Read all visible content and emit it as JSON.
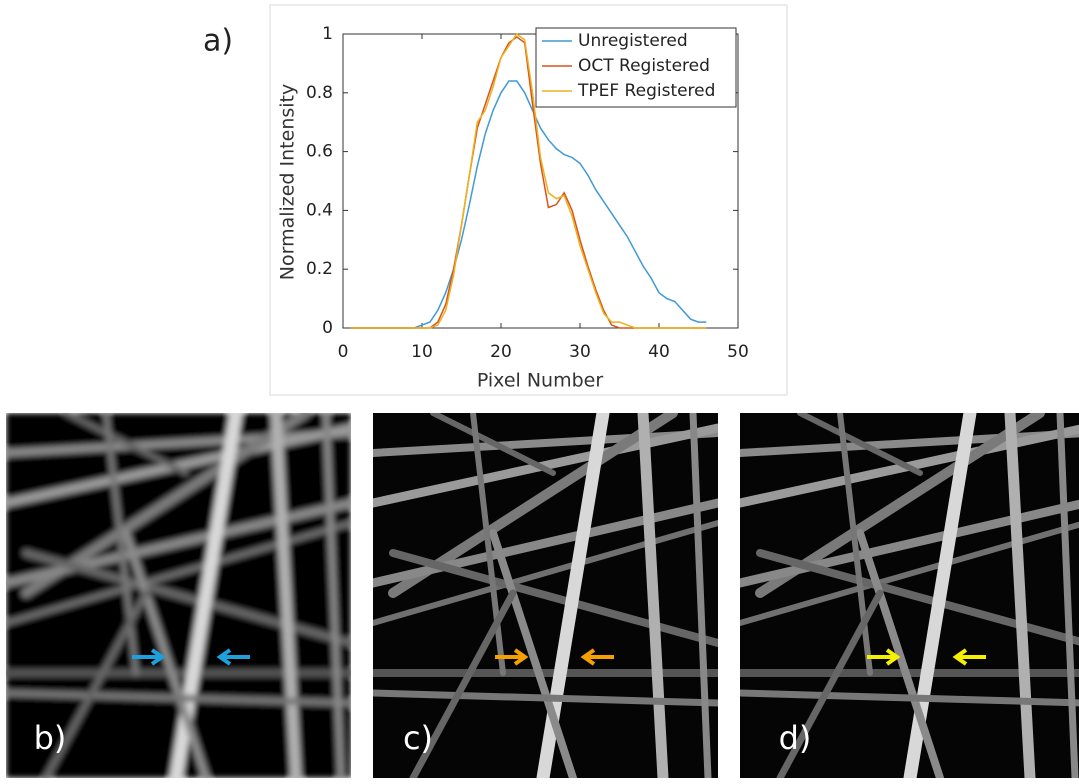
{
  "chart_data": {
    "type": "line",
    "panel_label": "a)",
    "xlabel": "Pixel Number",
    "ylabel": "Normalized Intensity",
    "x": [
      1,
      2,
      3,
      4,
      5,
      6,
      7,
      8,
      9,
      10,
      11,
      12,
      13,
      14,
      15,
      16,
      17,
      18,
      19,
      20,
      21,
      22,
      23,
      24,
      25,
      26,
      27,
      28,
      29,
      30,
      31,
      32,
      33,
      34,
      35,
      36,
      37,
      38,
      39,
      40,
      41,
      42,
      43,
      44,
      45,
      46
    ],
    "series": [
      {
        "name": "Unregistered",
        "color": "#3f9ad6",
        "values": [
          0,
          0,
          0,
          0,
          0,
          0,
          0,
          0,
          0,
          0.01,
          0.02,
          0.06,
          0.12,
          0.2,
          0.3,
          0.42,
          0.55,
          0.66,
          0.74,
          0.8,
          0.84,
          0.84,
          0.8,
          0.74,
          0.68,
          0.64,
          0.61,
          0.59,
          0.58,
          0.56,
          0.52,
          0.47,
          0.43,
          0.39,
          0.35,
          0.31,
          0.26,
          0.21,
          0.17,
          0.12,
          0.1,
          0.09,
          0.06,
          0.03,
          0.02,
          0.02
        ]
      },
      {
        "name": "OCT Registered",
        "color": "#d95319",
        "values": [
          0,
          0,
          0,
          0,
          0,
          0,
          0,
          0,
          0,
          0,
          0,
          0.02,
          0.08,
          0.2,
          0.35,
          0.52,
          0.68,
          0.76,
          0.84,
          0.92,
          0.97,
          0.99,
          0.97,
          0.76,
          0.56,
          0.41,
          0.42,
          0.46,
          0.4,
          0.3,
          0.21,
          0.13,
          0.06,
          0.01,
          0,
          0,
          0,
          0,
          0,
          0,
          0,
          0,
          0,
          0,
          0,
          0
        ]
      },
      {
        "name": "TPEF Registered",
        "color": "#edb120",
        "values": [
          0,
          0,
          0,
          0,
          0,
          0,
          0,
          0,
          0,
          0,
          0,
          0.01,
          0.06,
          0.18,
          0.35,
          0.52,
          0.7,
          0.74,
          0.82,
          0.92,
          0.96,
          1.0,
          0.98,
          0.8,
          0.58,
          0.46,
          0.44,
          0.45,
          0.38,
          0.28,
          0.2,
          0.12,
          0.05,
          0.02,
          0.02,
          0.01,
          0,
          0,
          0,
          0,
          0,
          0,
          0,
          0,
          0,
          0
        ]
      }
    ],
    "xlim": [
      0,
      50
    ],
    "xticks": [
      0,
      10,
      20,
      30,
      40,
      50
    ],
    "ylim": [
      0,
      1
    ],
    "yticks": [
      0,
      0.2,
      0.4,
      0.6,
      0.8,
      1
    ],
    "legend": "upper right"
  },
  "image_panels": [
    {
      "label": "b)"
    },
    {
      "label": "c)"
    },
    {
      "label": "d)"
    }
  ]
}
